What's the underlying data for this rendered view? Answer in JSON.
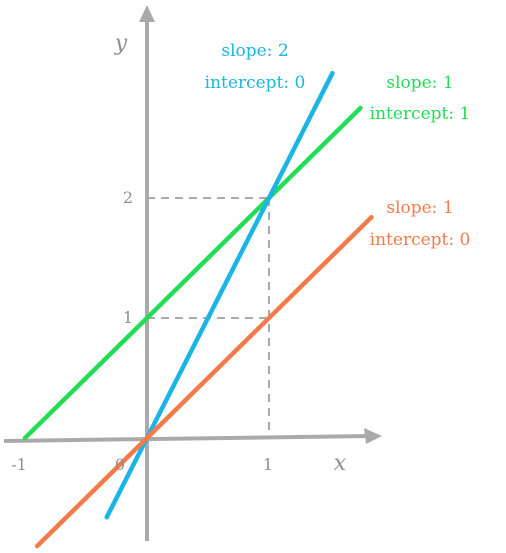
{
  "chart_data": {
    "type": "line",
    "xlabel": "x",
    "ylabel": "y",
    "x_ticks": [
      "-1",
      "0",
      "1"
    ],
    "y_ticks": [
      "1",
      "2"
    ],
    "grid": false,
    "guides": [
      {
        "x": 1,
        "y": 1
      },
      {
        "x": 1,
        "y": 2
      }
    ],
    "series": [
      {
        "key": "green",
        "slope": 1,
        "intercept": 1,
        "x": [
          -1,
          1.75
        ],
        "y": [
          0,
          2.75
        ],
        "color": "#22dd55",
        "label_line1": "slope: 1",
        "label_line2": "intercept: 1"
      },
      {
        "key": "blue",
        "slope": 2,
        "intercept": 0,
        "x": [
          -0.33,
          1.52
        ],
        "y": [
          -0.66,
          3.04
        ],
        "color": "#1ab4e6",
        "label_line1": "slope: 2",
        "label_line2": "intercept: 0"
      },
      {
        "key": "orange",
        "slope": 1,
        "intercept": 0,
        "x": [
          -0.9,
          1.84
        ],
        "y": [
          -0.9,
          1.84
        ],
        "color": "#f57a4a",
        "label_line1": "slope: 1",
        "label_line2": "intercept: 0"
      }
    ]
  }
}
